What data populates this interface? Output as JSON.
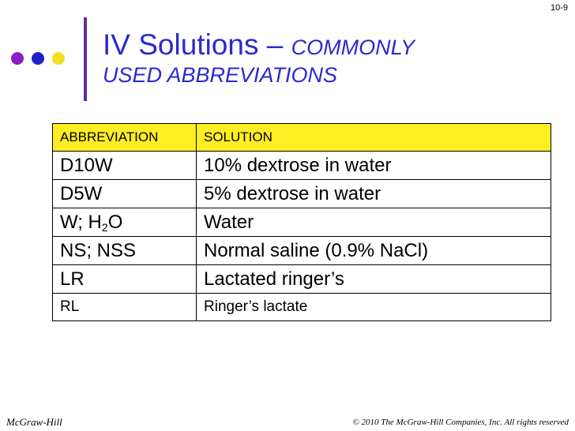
{
  "slide_number": "10-9",
  "colors": {
    "accent": "#2a2acc",
    "bar": "#5a2ea6",
    "header_fill": "#ffee22",
    "dots": [
      "#8a1ec8",
      "#2020c8",
      "#f0e020"
    ]
  },
  "title": {
    "main": "IV Solutions – ",
    "sub_line1": "COMMONLY",
    "sub_line2": "USED ABBREVIATIONS"
  },
  "table": {
    "headers": [
      "ABBREVIATION",
      "SOLUTION"
    ],
    "rows": [
      {
        "abbr": "D10W",
        "solution": "10% dextrose in water"
      },
      {
        "abbr": "D5W",
        "solution": "5% dextrose in water"
      },
      {
        "abbr_pre": "W; H",
        "abbr_sub": "2",
        "abbr_post": "O",
        "solution": "Water"
      },
      {
        "abbr": "NS; NSS",
        "solution": "Normal saline (0.9% NaCl)"
      },
      {
        "abbr": "LR",
        "solution": "Lactated ringer’s"
      },
      {
        "abbr": "RL",
        "solution": "Ringer’s lactate"
      }
    ]
  },
  "footer": {
    "publisher": "McGraw-Hill",
    "copyright": "© 2010 The McGraw-Hill Companies, Inc. All rights reserved"
  }
}
